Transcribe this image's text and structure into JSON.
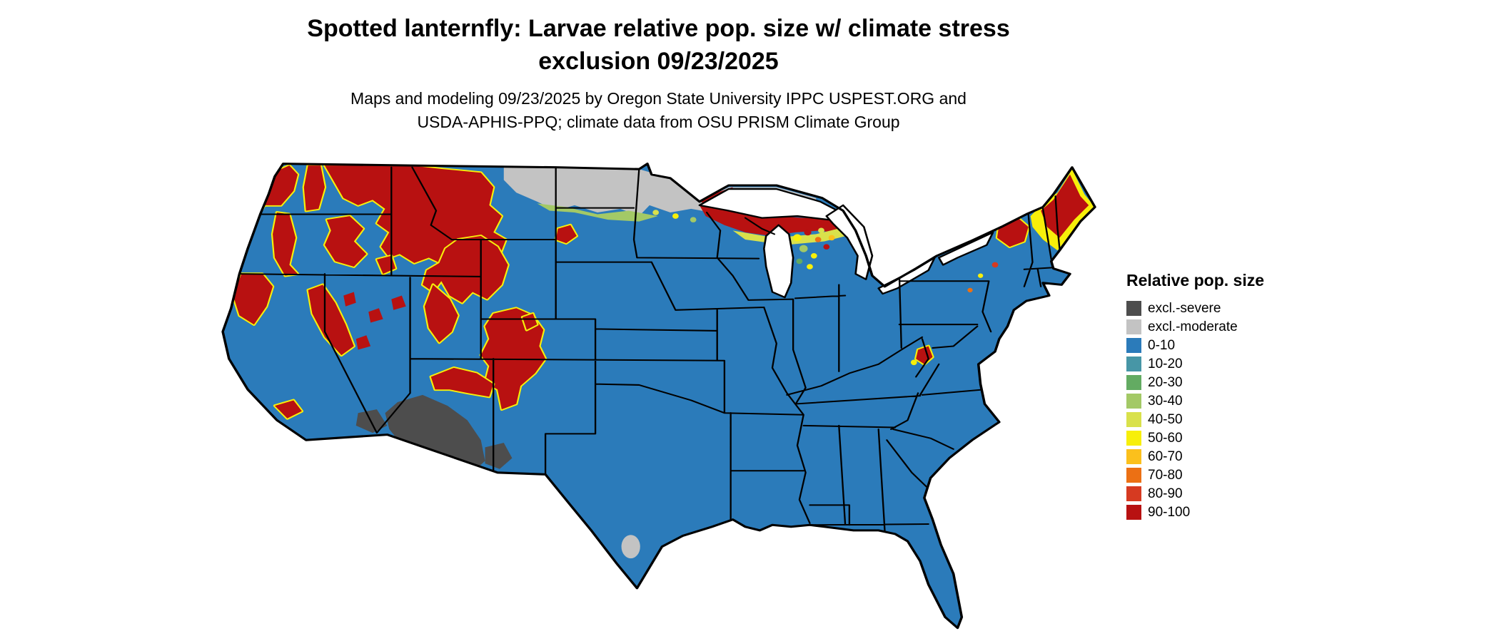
{
  "title": {
    "line1": "Spotted lanternfly: Larvae relative pop. size w/ climate stress",
    "line2": "exclusion 09/23/2025"
  },
  "subtitle": {
    "line1": "Maps and modeling 09/23/2025 by Oregon State University IPPC USPEST.ORG and",
    "line2": "USDA-APHIS-PPQ; climate data from OSU PRISM Climate Group"
  },
  "legend": {
    "title": "Relative pop. size",
    "items": [
      {
        "label": "excl.-severe",
        "color": "#4d4d4d"
      },
      {
        "label": "excl.-moderate",
        "color": "#c3c3c3"
      },
      {
        "label": "0-10",
        "color": "#2b7bba"
      },
      {
        "label": "10-20",
        "color": "#4796a6"
      },
      {
        "label": "20-30",
        "color": "#63ab62"
      },
      {
        "label": "30-40",
        "color": "#a3c966"
      },
      {
        "label": "40-50",
        "color": "#d9e14b"
      },
      {
        "label": "50-60",
        "color": "#f7ef0a"
      },
      {
        "label": "60-70",
        "color": "#fbc01c"
      },
      {
        "label": "70-80",
        "color": "#ec7014"
      },
      {
        "label": "80-90",
        "color": "#d63a21"
      },
      {
        "label": "90-100",
        "color": "#b81111"
      }
    ]
  },
  "map": {
    "type": "choropleth-raster",
    "region": "Contiguous United States",
    "date": "09/23/2025",
    "variable": "Spotted lanternfly larvae relative population size with climate stress exclusion",
    "regions": [
      {
        "area": "Most of the central, southern and eastern US",
        "class": "0-10"
      },
      {
        "area": "Pacific Northwest coast, Olympics and Cascades",
        "class": "80-100"
      },
      {
        "area": "Northern Rockies: NE Washington, Idaho, western Montana",
        "class": "80-100"
      },
      {
        "area": "Northern California coast ranges and Sierra Nevada",
        "class": "80-100"
      },
      {
        "area": "Scattered Nevada ranges",
        "class": "80-100"
      },
      {
        "area": "Utah Wasatch, Colorado Rockies into northern New Mexico",
        "class": "80-100"
      },
      {
        "area": "Arizona Mogollon Rim",
        "class": "80-100"
      },
      {
        "area": "Southern Arizona / SE California deserts",
        "class": "excl.-severe"
      },
      {
        "area": "NE Montana, North Dakota, northern Minnesota",
        "class": "excl.-moderate"
      },
      {
        "area": "Lake Superior shore, northern Wisconsin, Michigan UP",
        "class": "80-100"
      },
      {
        "area": "Northern lower Michigan",
        "class": "mixed 30-100 speckle"
      },
      {
        "area": "Adirondacks, northern New England and Maine",
        "class": "50-100 with yellow fringe"
      },
      {
        "area": "Small Appalachian high spots (WV)",
        "class": "50-90"
      },
      {
        "area": "Small pocket on south Texas border",
        "class": "excl.-moderate"
      }
    ]
  }
}
